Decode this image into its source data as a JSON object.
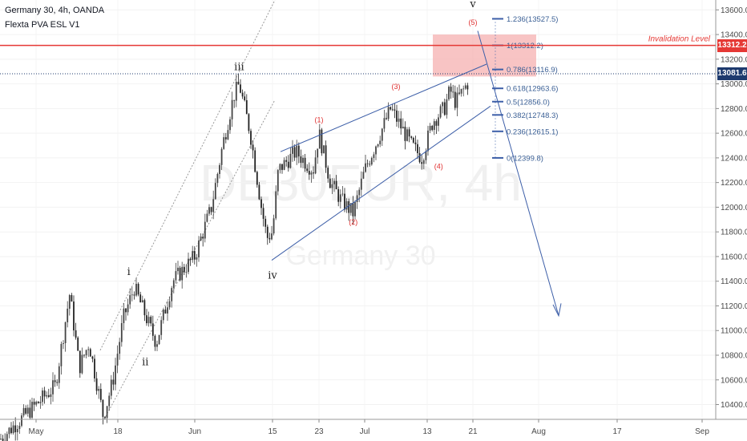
{
  "header": {
    "title": "Germany 30, 4h, OANDA",
    "indicator": "Flexta PVA ESL V1"
  },
  "watermark": {
    "symbol": "DE30EUR, 4h",
    "name": "Germany 30"
  },
  "colors": {
    "invalidation": "#e53935",
    "current": "#1e3a6e",
    "wedge": "#3d5fa8",
    "fib": "#3d5fa8",
    "candle_up": "#444444",
    "candle_down": "#222222",
    "zone": "#f5b0b0"
  },
  "chart_data": {
    "type": "candlestick",
    "y_axis": {
      "ylim": [
        10280,
        13680
      ],
      "ticks": [
        10400,
        10600,
        10800,
        11000,
        11200,
        11400,
        11600,
        11800,
        12000,
        12200,
        12400,
        12600,
        12800,
        13000,
        13200,
        13400,
        13600
      ],
      "tick_labels": [
        "10400.0",
        "10600.0",
        "10800.0",
        "11000.0",
        "11200.0",
        "11400.0",
        "11600.0",
        "11800.0",
        "12000.0",
        "12200.0",
        "12400.0",
        "12600.0",
        "12800.0",
        "13000.0",
        "13200.0",
        "13400.0",
        "13600.0"
      ]
    },
    "x_axis": {
      "labels": [
        "May",
        "18",
        "Jun",
        "15",
        "23",
        "Jul",
        "13",
        "21",
        "Aug",
        "17",
        "Sep"
      ]
    },
    "price_path": [
      [
        "May 1",
        10400
      ],
      [
        "May 5",
        10550
      ],
      [
        "May 8",
        11300
      ],
      [
        "May 10",
        10700
      ],
      [
        "May 12",
        10900
      ],
      [
        "May 15",
        10300
      ],
      [
        "May 17",
        10600
      ],
      [
        "May 19",
        11100
      ],
      [
        "May 21",
        11350
      ],
      [
        "May 25",
        10900
      ],
      [
        "May 28",
        11400
      ],
      [
        "Jun 1",
        11600
      ],
      [
        "Jun 4",
        12000
      ],
      [
        "Jun 6",
        12500
      ],
      [
        "Jun 8",
        12900
      ],
      [
        "Jun 9",
        13000
      ],
      [
        "Jun 11",
        12600
      ],
      [
        "Jun 13",
        12000
      ],
      [
        "Jun 14",
        11750
      ],
      [
        "Jun 15",
        11800
      ],
      [
        "Jun 16",
        12300
      ],
      [
        "Jun 19",
        12450
      ],
      [
        "Jun 22",
        12300
      ],
      [
        "Jun 23",
        12600
      ],
      [
        "Jun 25",
        12200
      ],
      [
        "Jun 27",
        12050
      ],
      [
        "Jun 29",
        11950
      ],
      [
        "Jul 1",
        12300
      ],
      [
        "Jul 3",
        12500
      ],
      [
        "Jul 6",
        12800
      ],
      [
        "Jul 8",
        12650
      ],
      [
        "Jul 10",
        12500
      ],
      [
        "Jul 12",
        12400
      ],
      [
        "Jul 14",
        12700
      ],
      [
        "Jul 16",
        12800
      ],
      [
        "Jul 17",
        12950
      ],
      [
        "Jul 18",
        12850
      ],
      [
        "Jul 20",
        13000
      ],
      [
        "Jul 21",
        13081.6
      ]
    ],
    "current_price": 13081.6,
    "invalidation": {
      "label": "Invalidation Level",
      "value": 13312.2,
      "tag": "13312.2"
    },
    "current_tag": "13081.6",
    "fib_levels": [
      {
        "label": "1.236(13527.5)",
        "value": 13527.5
      },
      {
        "label": "1(13312.2)",
        "value": 13312.2
      },
      {
        "label": "0.786(13116.9)",
        "value": 13116.9
      },
      {
        "label": "0.618(12963.6)",
        "value": 12963.6
      },
      {
        "label": "0.5(12856.0)",
        "value": 12856.0
      },
      {
        "label": "0.382(12748.3)",
        "value": 12748.3
      },
      {
        "label": "0.236(12615.1)",
        "value": 12615.1
      },
      {
        "label": "0(12399.8)",
        "value": 12399.8
      }
    ],
    "wave_labels": [
      {
        "text": "i",
        "at": [
          "May 20",
          11450
        ]
      },
      {
        "text": "ii",
        "at": [
          "May 23",
          10720
        ]
      },
      {
        "text": "iii",
        "at": [
          "Jun 9",
          13110
        ]
      },
      {
        "text": "iv",
        "at": [
          "Jun 15",
          11420
        ]
      },
      {
        "text": "v",
        "at": [
          "Jul 21",
          13620
        ]
      }
    ],
    "sub_wave_labels": [
      {
        "text": "(1)",
        "at": [
          "Jun 23",
          12690
        ]
      },
      {
        "text": "(2)",
        "at": [
          "Jun 29",
          11860
        ]
      },
      {
        "text": "(3)",
        "at": [
          "Jul 7",
          12960
        ]
      },
      {
        "text": "(4)",
        "at": [
          "Jul 15",
          12310
        ]
      },
      {
        "text": "(5)",
        "at": [
          "Jul 21",
          13480
        ]
      }
    ],
    "projection_target": 11100
  }
}
